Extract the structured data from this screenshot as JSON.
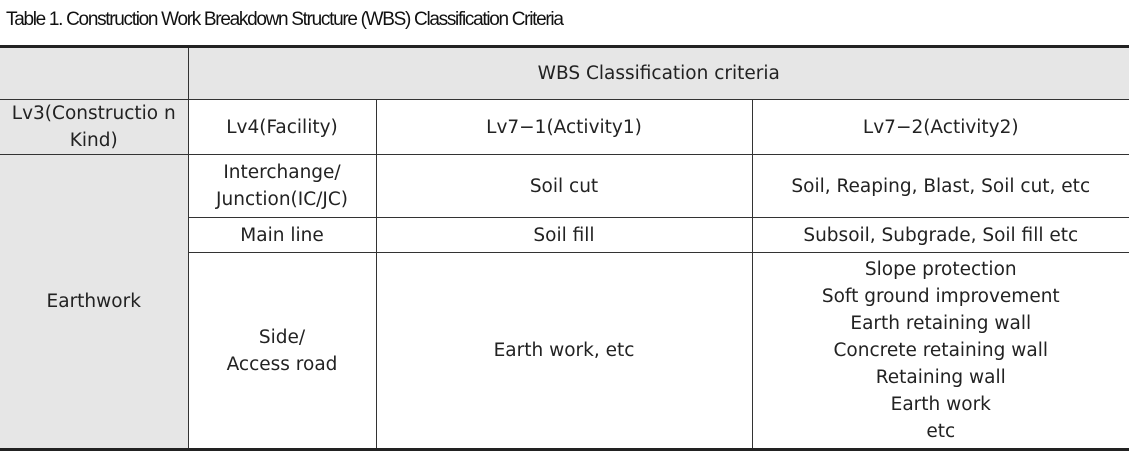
{
  "caption": "Table 1. Construction Work Breakdown Structure (WBS) Classification Criteria",
  "header": {
    "corner": "",
    "group": "WBS Classification criteria",
    "col_lv3": "Lv3(Constructio n Kind)",
    "col_lv4": "Lv4(Facility)",
    "col_lv71": "Lv7−1(Activity1)",
    "col_lv72": "Lv7−2(Activity2)"
  },
  "lv3_kind": "Earthwork",
  "rows": [
    {
      "facility": [
        "Interchange/",
        "Junction(IC/JC)"
      ],
      "activity1": "Soil cut",
      "activity2": [
        "Soil, Reaping, Blast, Soil cut, etc"
      ]
    },
    {
      "facility": [
        "Main line"
      ],
      "activity1": "Soil fill",
      "activity2": [
        "Subsoil, Subgrade, Soil fill etc"
      ]
    },
    {
      "facility": [
        "Side/",
        "Access road"
      ],
      "activity1": "Earth work, etc",
      "activity2": [
        "Slope protection",
        "Soft ground improvement",
        "Earth retaining wall",
        "Concrete retaining wall",
        "Retaining wall",
        "Earth work",
        "etc"
      ]
    }
  ]
}
